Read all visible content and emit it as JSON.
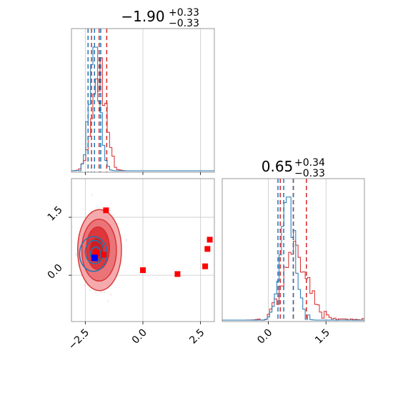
{
  "chart_data": {
    "type": "corner",
    "grid": true,
    "colors": {
      "red": "#d62728",
      "blue": "#1f77b4",
      "marker_red": "#ff0000",
      "marker_blue": "#0000ff",
      "grid": "#c8c8c8",
      "axes": "#7f7f7f",
      "text": "#000000"
    },
    "panels": [
      {
        "kind": "hist1d",
        "title_main": "−1.90",
        "title_plus": "+0.33",
        "title_minus": "−0.33",
        "xlim": [
          -3.1,
          3.1
        ],
        "xticks": [
          -2.5,
          0.0,
          2.5
        ],
        "xtick_labels_shown": false,
        "series": [
          {
            "name": "red",
            "color": "#d62728",
            "peak": -1.9,
            "sigma": 0.3,
            "amplitude": 0.82,
            "noise": 0.07,
            "seed": 7,
            "quantiles": [
              -2.23,
              -1.9,
              -1.57
            ]
          },
          {
            "name": "blue",
            "color": "#1f77b4",
            "peak": -2.1,
            "sigma": 0.22,
            "amplitude": 1.0,
            "noise": 0.08,
            "seed": 3,
            "quantiles": [
              -2.38,
              -2.1,
              -1.83
            ]
          }
        ]
      },
      {
        "kind": "contour2d",
        "xlim": [
          -3.1,
          3.1
        ],
        "ylim": [
          -1.2,
          2.5
        ],
        "xticks": [
          -2.5,
          0.0,
          2.5
        ],
        "xtick_labels": [
          "−2.5",
          "0.0",
          "2.5"
        ],
        "yticks": [
          0.0,
          1.5
        ],
        "ytick_labels": [
          "0.0",
          "1.5"
        ],
        "red_contours": [
          {
            "cx": -1.88,
            "cy": 0.65,
            "rx": 0.95,
            "ry": 1.05,
            "fill": "#f4a3a6",
            "opacity": 0.9
          },
          {
            "cx": -1.9,
            "cy": 0.65,
            "rx": 0.75,
            "ry": 0.8,
            "fill": "#ea6f73",
            "opacity": 0.9
          },
          {
            "cx": -1.95,
            "cy": 0.7,
            "rx": 0.5,
            "ry": 0.55,
            "fill": "#dc3035",
            "opacity": 0.9
          },
          {
            "cx": -2.0,
            "cy": 0.65,
            "rx": 0.3,
            "ry": 0.3,
            "fill": "#c81d22",
            "opacity": 0.95
          }
        ],
        "blue_contours": [
          {
            "cx": -2.15,
            "cy": 0.55,
            "rx": 0.6,
            "ry": 0.45
          },
          {
            "cx": -2.1,
            "cy": 0.6,
            "rx": 0.4,
            "ry": 0.3
          },
          {
            "cx": -2.05,
            "cy": 0.55,
            "rx": 0.22,
            "ry": 0.18
          }
        ],
        "red_markers": [
          {
            "x": -1.6,
            "y": 1.68
          },
          {
            "x": -2.0,
            "y": 0.58
          },
          {
            "x": -1.7,
            "y": 0.53
          },
          {
            "x": 0.0,
            "y": 0.13
          },
          {
            "x": 1.5,
            "y": 0.03
          },
          {
            "x": 2.7,
            "y": 0.23
          },
          {
            "x": 2.8,
            "y": 0.68
          },
          {
            "x": 2.9,
            "y": 0.92
          }
        ],
        "blue_markers": [
          {
            "x": -2.1,
            "y": 0.45
          }
        ]
      },
      {
        "kind": "hist1d",
        "title_main": "0.65",
        "title_plus": "+0.34",
        "title_minus": "−0.33",
        "xlim": [
          -1.2,
          2.5
        ],
        "xticks": [
          0.0,
          1.5
        ],
        "xtick_labels": [
          "0.0",
          "1.5"
        ],
        "xtick_labels_shown": true,
        "series": [
          {
            "name": "red",
            "color": "#d62728",
            "peak": 0.7,
            "sigma": 0.33,
            "amplitude": 0.55,
            "noise": 0.08,
            "seed": 11,
            "quantiles": [
              0.31,
              0.65,
              0.99
            ]
          },
          {
            "name": "blue",
            "color": "#1f77b4",
            "peak": 0.52,
            "sigma": 0.18,
            "amplitude": 1.0,
            "noise": 0.07,
            "seed": 5,
            "quantiles": [
              0.25,
              0.4,
              0.65
            ]
          }
        ]
      }
    ]
  }
}
